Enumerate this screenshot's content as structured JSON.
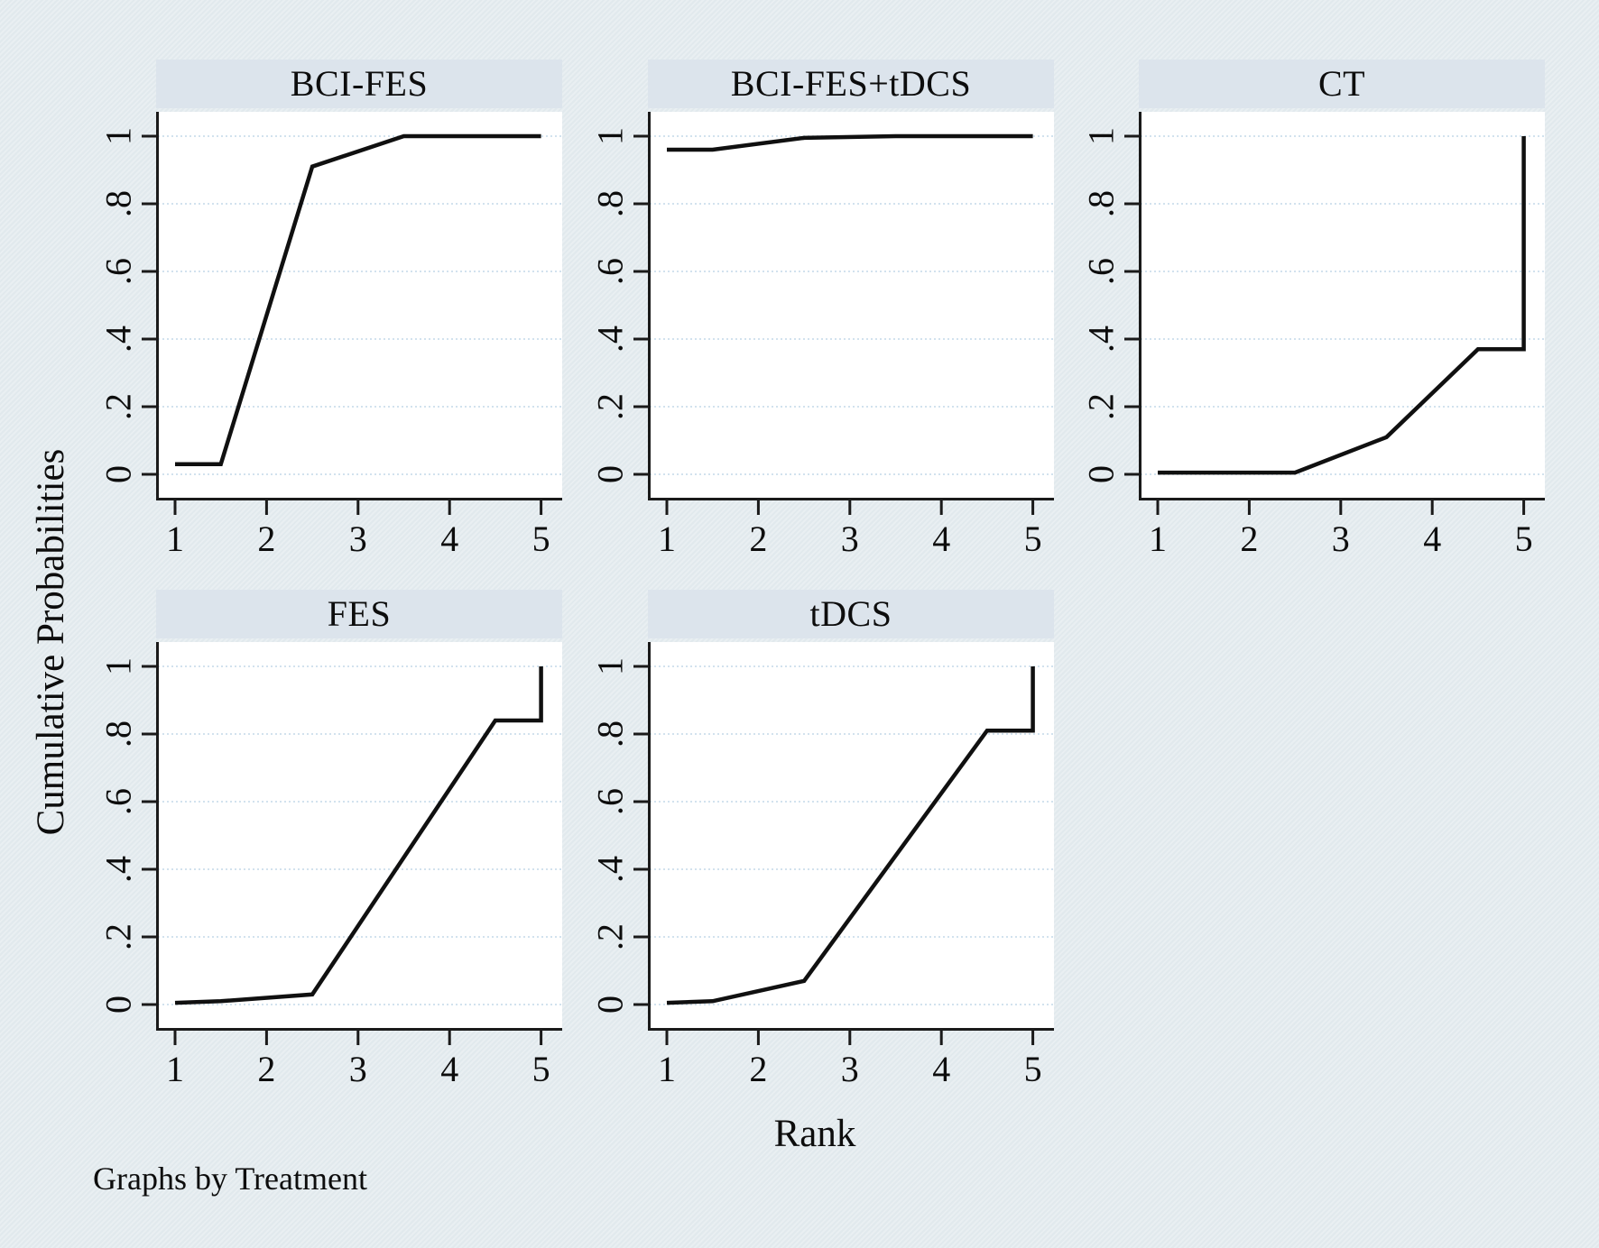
{
  "figure": {
    "y_axis_title": "Cumulative Probabilities",
    "x_axis_title": "Rank",
    "note": "Graphs by Treatment"
  },
  "colors": {
    "background": "#e6ecef",
    "panel_title_bg": "#dce4ec",
    "plot_bg": "#ffffff",
    "gridline": "#d2e2ee",
    "axis": "#1a1a1a",
    "line": "#101010",
    "text": "#0d0d0d"
  },
  "axes": {
    "x_tick_labels": [
      "1",
      "2",
      "3",
      "4",
      "5"
    ],
    "x_tick_values": [
      1,
      2,
      3,
      4,
      5
    ],
    "y_tick_labels": [
      "0",
      ".2",
      ".4",
      ".6",
      ".8",
      "1"
    ],
    "y_tick_values": [
      0,
      0.2,
      0.4,
      0.6,
      0.8,
      1
    ],
    "xlim": [
      0.8,
      5.22
    ],
    "ylim": [
      0,
      1
    ],
    "grid": "horizontal-dotted",
    "legend": "none"
  },
  "chart_data": [
    {
      "type": "line",
      "title": "BCI-FES",
      "x": [
        1,
        1.5,
        2.5,
        3.5,
        5
      ],
      "y": [
        0.03,
        0.03,
        0.91,
        1.0,
        1.0
      ],
      "xlabel": "Rank",
      "ylabel": "Cumulative Probabilities",
      "xlim": [
        0.8,
        5.22
      ],
      "ylim": [
        0,
        1
      ]
    },
    {
      "type": "line",
      "title": "BCI-FES+tDCS",
      "x": [
        1,
        1.5,
        2.5,
        3.5,
        5
      ],
      "y": [
        0.96,
        0.96,
        0.995,
        1.0,
        1.0
      ],
      "xlabel": "Rank",
      "ylabel": "Cumulative Probabilities",
      "xlim": [
        0.8,
        5.22
      ],
      "ylim": [
        0,
        1
      ]
    },
    {
      "type": "line",
      "title": "CT",
      "x": [
        1,
        2.5,
        3.5,
        4.5,
        5,
        5
      ],
      "y": [
        0.005,
        0.005,
        0.11,
        0.37,
        0.37,
        1.0
      ],
      "xlabel": "Rank",
      "ylabel": "Cumulative Probabilities",
      "xlim": [
        0.8,
        5.22
      ],
      "ylim": [
        0,
        1
      ]
    },
    {
      "type": "line",
      "title": "FES",
      "x": [
        1,
        1.5,
        2.5,
        4.5,
        5,
        5
      ],
      "y": [
        0.005,
        0.01,
        0.03,
        0.84,
        0.84,
        1.0
      ],
      "xlabel": "Rank",
      "ylabel": "Cumulative Probabilities",
      "xlim": [
        0.8,
        5.22
      ],
      "ylim": [
        0,
        1
      ]
    },
    {
      "type": "line",
      "title": "tDCS",
      "x": [
        1,
        1.5,
        2.5,
        4.5,
        5,
        5
      ],
      "y": [
        0.005,
        0.01,
        0.07,
        0.81,
        0.81,
        1.0
      ],
      "xlabel": "Rank",
      "ylabel": "Cumulative Probabilities",
      "xlim": [
        0.8,
        5.22
      ],
      "ylim": [
        0,
        1
      ]
    }
  ]
}
